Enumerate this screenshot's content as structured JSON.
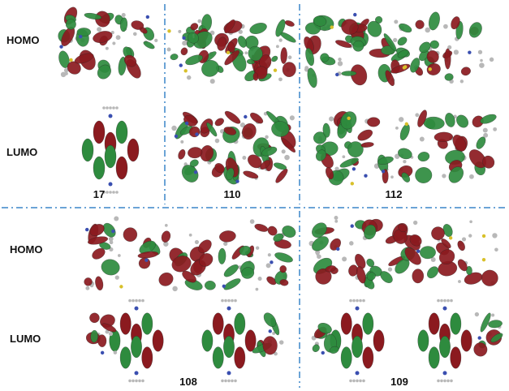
{
  "top_panel": {
    "row_labels": [
      "HOMO",
      "LUMO"
    ],
    "molecules": [
      "17",
      "110",
      "112"
    ]
  },
  "bottom_panel": {
    "row_labels": [
      "HOMO",
      "LUMO"
    ],
    "molecules": [
      "108",
      "109"
    ]
  },
  "colors": {
    "lobe_red": "#8b1a1f",
    "lobe_green": "#2e8b3e",
    "divider": "#3a86c8",
    "atom_grey": "#b8b8b8",
    "atom_blue": "#3a4fb0",
    "atom_yellow": "#d8c02a"
  }
}
